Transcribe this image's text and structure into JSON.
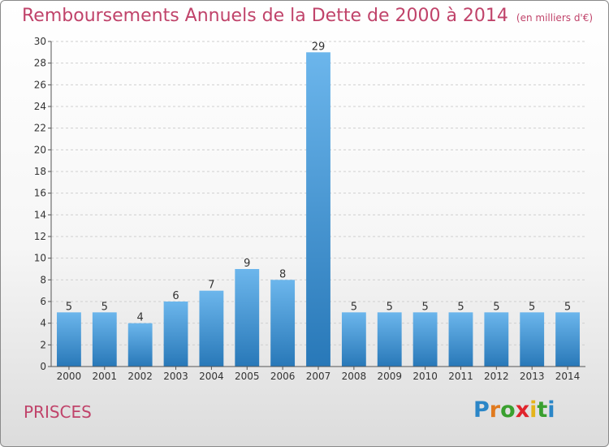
{
  "title": "Remboursements Annuels de la Dette de 2000 à 2014",
  "subtitle": "(en milliers d'€)",
  "commune": "PRISCES",
  "logo": {
    "letters": [
      "P",
      "r",
      "o",
      "x",
      "i",
      "t",
      "i"
    ],
    "colors": [
      "#2b86c7",
      "#e07a1f",
      "#3aa02f",
      "#e0242c",
      "#e5b41a",
      "#3aa02f",
      "#2b86c7"
    ]
  },
  "colors": {
    "bar_light": "#6cb6ec",
    "bar_dark": "#2878b8",
    "title": "#c0436a",
    "grid": "#cfcfcf",
    "axis": "#555555"
  },
  "chart_data": {
    "type": "bar",
    "categories": [
      "2000",
      "2001",
      "2002",
      "2003",
      "2004",
      "2005",
      "2006",
      "2007",
      "2008",
      "2009",
      "2010",
      "2011",
      "2012",
      "2013",
      "2014"
    ],
    "values": [
      5,
      5,
      4,
      6,
      7,
      9,
      8,
      29,
      5,
      5,
      5,
      5,
      5,
      5,
      5
    ],
    "title": "Remboursements Annuels de la Dette de 2000 à 2014",
    "subtitle": "(en milliers d'€)",
    "xlabel": "",
    "ylabel": "",
    "ylim": [
      0,
      30
    ],
    "yticks": [
      0,
      2,
      4,
      6,
      8,
      10,
      12,
      14,
      16,
      18,
      20,
      22,
      24,
      26,
      28,
      30
    ],
    "grid": true,
    "data_labels": true
  }
}
